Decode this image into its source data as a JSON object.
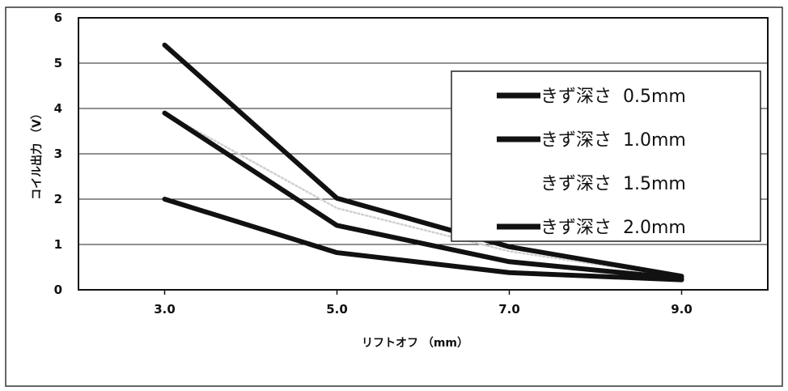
{
  "chart_data": {
    "type": "line",
    "title": "",
    "xlabel": "リフトオフ （mm）",
    "ylabel": "コイル出力 （V）",
    "x": [
      3.0,
      5.0,
      7.0,
      9.0
    ],
    "x_tick_labels": [
      "3.0",
      "5.0",
      "7.0",
      "9.0"
    ],
    "xlim": [
      2.0,
      10.0
    ],
    "ylim": [
      0,
      6
    ],
    "y_ticks": [
      0,
      1,
      2,
      3,
      4,
      5,
      6
    ],
    "grid": "horizontal",
    "legend_position": "right",
    "series": [
      {
        "name": "きず深さ  0.5mm",
        "values": [
          2.0,
          0.82,
          0.38,
          0.22
        ],
        "color": "#111111",
        "legend_swatch": true
      },
      {
        "name": "きず深さ  1.0mm",
        "values": [
          3.9,
          1.42,
          0.62,
          0.25
        ],
        "color": "#111111",
        "legend_swatch": true
      },
      {
        "name": "きず深さ  1.5mm",
        "values": [
          3.9,
          1.8,
          0.85,
          0.28
        ],
        "color": "#d0d0d0",
        "legend_swatch": false
      },
      {
        "name": "きず深さ  2.0mm",
        "values": [
          5.4,
          2.02,
          0.95,
          0.3
        ],
        "color": "#111111",
        "legend_swatch": true
      }
    ]
  }
}
